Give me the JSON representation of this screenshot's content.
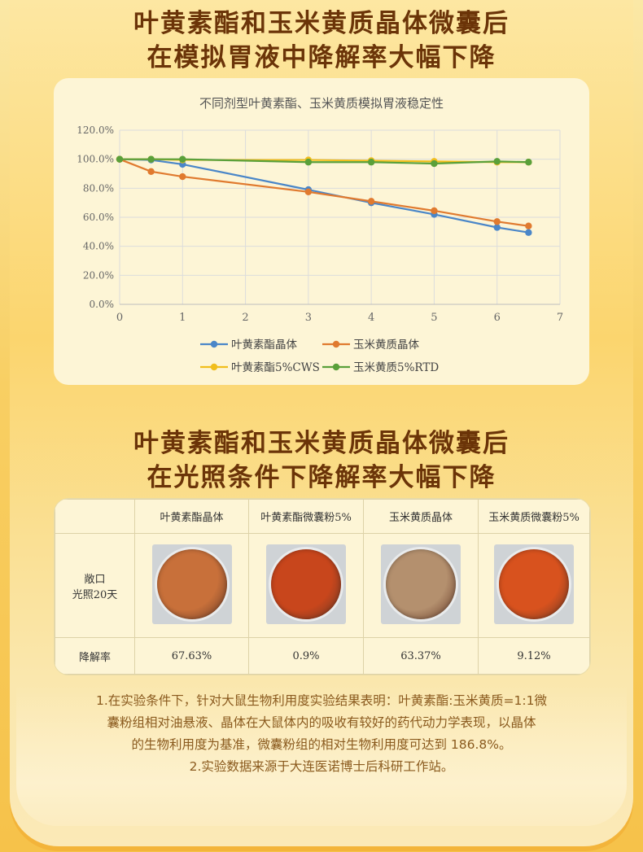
{
  "heading1": [
    "叶黄素酯和玉米黄质晶体微囊后",
    "在模拟胃液中降解率大幅下降"
  ],
  "heading2": [
    "叶黄素酯和玉米黄质晶体微囊后",
    "在光照条件下降解率大幅下降"
  ],
  "chart_data": {
    "type": "line",
    "title": "不同剂型叶黄素酯、玉米黄质模拟胃液稳定性",
    "xlim": [
      0,
      7
    ],
    "ylim": [
      0,
      120
    ],
    "xticks": [
      "0",
      "1",
      "2",
      "3",
      "4",
      "5",
      "6",
      "7"
    ],
    "yticks": [
      "0.0%",
      "20.0%",
      "40.0%",
      "60.0%",
      "80.0%",
      "100.0%",
      "120.0%"
    ],
    "grid": true,
    "legend_placement": "bottom",
    "series": [
      {
        "name": "叶黄素酯晶体",
        "color": "#4a86c8",
        "x": [
          0,
          0.5,
          1,
          3,
          4,
          5,
          6,
          6.5
        ],
        "y": [
          100,
          99.5,
          96.5,
          79,
          70,
          62,
          53,
          49.5
        ]
      },
      {
        "name": "玉米黄质晶体",
        "color": "#e07a2f",
        "x": [
          0,
          0.5,
          1,
          3,
          4,
          5,
          6,
          6.5
        ],
        "y": [
          100,
          91.5,
          88,
          77.5,
          71,
          64.5,
          57,
          54
        ]
      },
      {
        "name": "叶黄素酯5%CWS",
        "color": "#f1be1c",
        "x": [
          0,
          0.5,
          1,
          3,
          4,
          5,
          6,
          6.5
        ],
        "y": [
          100,
          100,
          99.5,
          99.5,
          99,
          98.5,
          98,
          98
        ]
      },
      {
        "name": "玉米黄质5%RTD",
        "color": "#5aa03a",
        "x": [
          0,
          0.5,
          1,
          3,
          4,
          5,
          6,
          6.5
        ],
        "y": [
          100,
          100,
          100,
          98,
          98,
          97,
          98.5,
          98
        ]
      }
    ]
  },
  "table": {
    "headers": [
      "",
      "叶黄素酯晶体",
      "叶黄素酯微囊粉5%",
      "玉米黄质晶体",
      "玉米黄质微囊粉5%"
    ],
    "row_image_label": [
      "敞口",
      "光照20天"
    ],
    "row_rate_label": "降解率",
    "rates": [
      "67.63%",
      "0.9%",
      "63.37%",
      "9.12%"
    ],
    "thumb_colors": [
      "#c8703a",
      "#c8461c",
      "#b4906e",
      "#d8521e"
    ]
  },
  "notes": [
    "1.在实验条件下，针对大鼠生物利用度实验结果表明：叶黄素酯:玉米黄质=1:1微",
    "囊粉组相对油悬液、晶体在大鼠体内的吸收有较好的药代动力学表现，以晶体",
    "的生物利用度为基准，微囊粉组的相对生物利用度可达到 186.8%。",
    "2.实验数据来源于大连医诺博士后科研工作站。"
  ]
}
